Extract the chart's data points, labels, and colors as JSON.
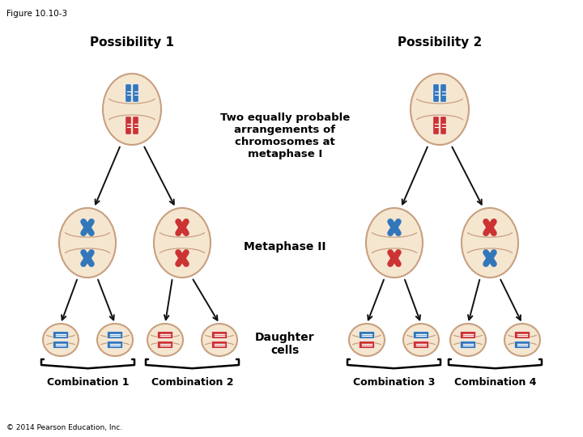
{
  "figure_label": "Figure 10.10-3",
  "copyright": "© 2014 Pearson Education, Inc.",
  "possibility1_label": "Possibility 1",
  "possibility2_label": "Possibility 2",
  "center_text": "Two equally probable\narrangements of\nchromosomes at\nmetaphase I",
  "metaphase2_label": "Metaphase II",
  "daughter_label": "Daughter\ncells",
  "comb1_label": "Combination 1",
  "comb2_label": "Combination 2",
  "comb3_label": "Combination 3",
  "comb4_label": "Combination 4",
  "cell_fill": "#f5e6d0",
  "cell_edge": "#c8a080",
  "blue_color": "#3377bb",
  "red_color": "#cc3333",
  "bg_color": "#ffffff",
  "arrow_color": "#111111"
}
